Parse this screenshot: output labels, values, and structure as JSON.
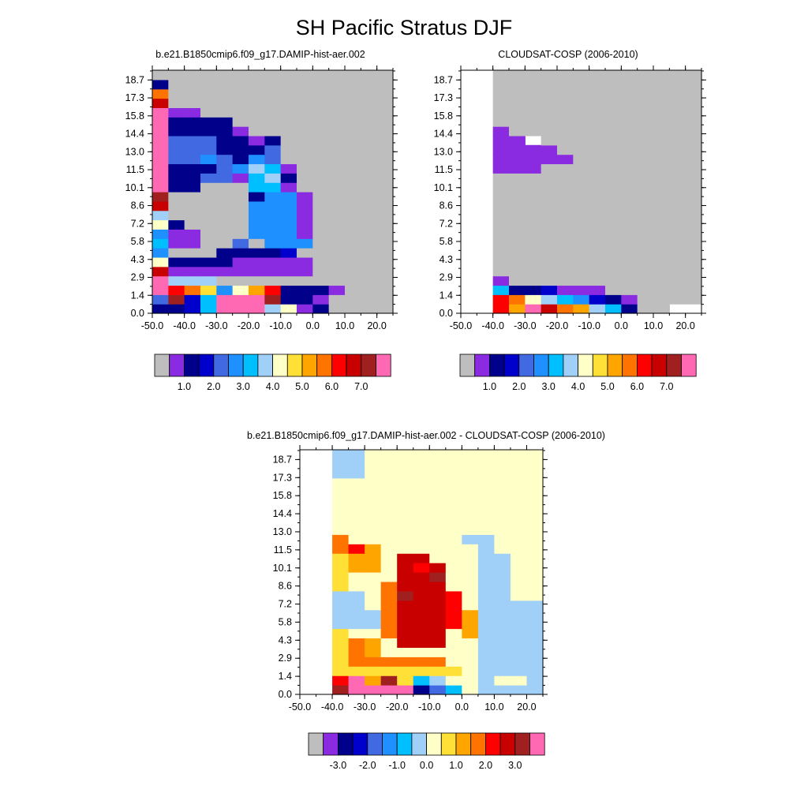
{
  "main_title": "SH Pacific Stratus DJF",
  "panels": [
    {
      "title": "b.e21.B1850cmip6.f09_g17.DAMIP-hist-aer.002"
    },
    {
      "title": "CLOUDSAT-COSP (2006-2010)"
    },
    {
      "title": "b.e21.B1850cmip6.f09_g17.DAMIP-hist-aer.002 - CLOUDSAT-COSP (2006-2010)"
    }
  ],
  "colors": {
    "missing": "#BEBEBE",
    "levels": [
      "#8A2BE2",
      "#00008B",
      "#0000CD",
      "#4169E1",
      "#1E90FF",
      "#00BFFF",
      "#A0D0F8",
      "#FFFFC8",
      "#FFE036",
      "#FFA500",
      "#FF7300",
      "#FF0000",
      "#C80000",
      "#A02020",
      "#FF69B4"
    ]
  },
  "chart_data": [
    {
      "type": "heatmap",
      "title": "b.e21.B1850cmip6.f09_g17.DAMIP-hist-aer.002",
      "xlim": [
        -50,
        25
      ],
      "ylim": [
        0,
        19.5
      ],
      "xticks": [
        "-50.0",
        "-40.0",
        "-30.0",
        "-20.0",
        "-10.0",
        "0.0",
        "10.0",
        "20.0"
      ],
      "yticks": [
        "0.0",
        "1.4",
        "2.9",
        "4.3",
        "5.8",
        "7.2",
        "8.6",
        "10.1",
        "11.5",
        "13.0",
        "14.4",
        "15.8",
        "17.3",
        "18.7"
      ],
      "colorbar_labels": [
        "1.0",
        "2.0",
        "3.0",
        "4.0",
        "5.0",
        "6.0",
        "7.0"
      ]
    },
    {
      "type": "heatmap",
      "title": "CLOUDSAT-COSP (2006-2010)",
      "xlim": [
        -50,
        25
      ],
      "ylim": [
        0,
        19.5
      ],
      "xticks": [
        "-50.0",
        "-40.0",
        "-30.0",
        "-20.0",
        "-10.0",
        "0.0",
        "10.0",
        "20.0"
      ],
      "yticks": [
        "0.0",
        "1.4",
        "2.9",
        "4.3",
        "5.8",
        "7.2",
        "8.6",
        "10.1",
        "11.5",
        "13.0",
        "14.4",
        "15.8",
        "17.3",
        "18.7"
      ],
      "colorbar_labels": [
        "1.0",
        "2.0",
        "3.0",
        "4.0",
        "5.0",
        "6.0",
        "7.0"
      ]
    },
    {
      "type": "heatmap",
      "title": "b.e21.B1850cmip6.f09_g17.DAMIP-hist-aer.002 - CLOUDSAT-COSP (2006-2010)",
      "xlim": [
        -50,
        25
      ],
      "ylim": [
        0,
        19.5
      ],
      "xticks": [
        "-50.0",
        "-40.0",
        "-30.0",
        "-20.0",
        "-10.0",
        "0.0",
        "10.0",
        "20.0"
      ],
      "yticks": [
        "0.0",
        "1.4",
        "2.9",
        "4.3",
        "5.8",
        "7.2",
        "8.6",
        "10.1",
        "11.5",
        "13.0",
        "14.4",
        "15.8",
        "17.3",
        "18.7"
      ],
      "colorbar_labels": [
        "-3.0",
        "-2.0",
        "-1.0",
        "0.0",
        "1.0",
        "2.0",
        "3.0"
      ]
    }
  ]
}
